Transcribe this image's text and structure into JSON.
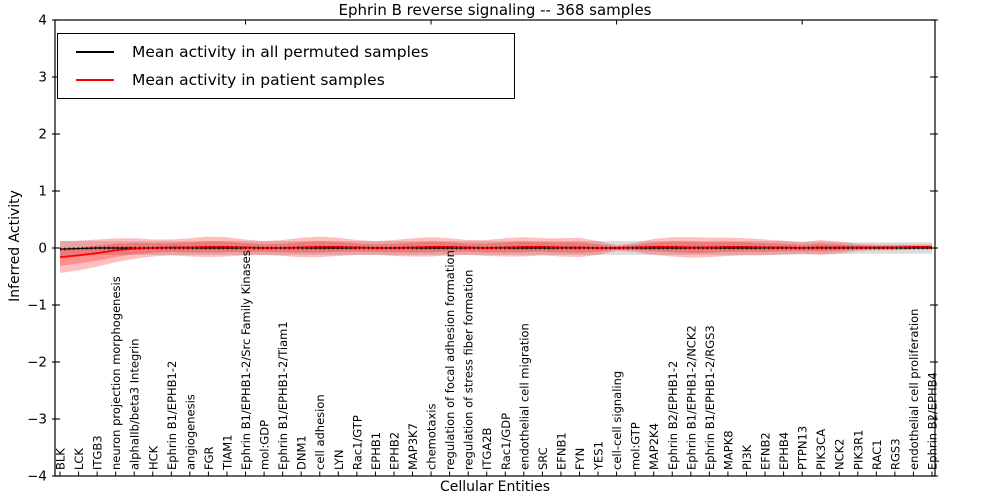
{
  "chart_data": {
    "type": "line",
    "title": "Ephrin B reverse signaling -- 368 samples",
    "xlabel": "Cellular Entities",
    "ylabel": "Inferred Activity",
    "ylim": [
      -4,
      4
    ],
    "yticks": [
      4,
      3,
      2,
      1,
      0,
      -1,
      -2,
      -3,
      -4
    ],
    "ytick_labels": [
      "4",
      "3",
      "2",
      "1",
      "0",
      "−1",
      "−2",
      "−3",
      "−4"
    ],
    "grid": false,
    "legend_position": "upper left",
    "categories": [
      "BLK",
      "LCK",
      "ITGB3",
      "neuron projection morphogenesis",
      "alphaIIb/beta3 Integrin",
      "HCK",
      "Ephrin B1/EPHB1-2",
      "angiogenesis",
      "FGR",
      "TIAM1",
      "Ephrin B1/EPHB1-2/Src Family Kinases",
      "mol:GDP",
      "Ephrin B1/EPHB1-2/Tiam1",
      "DNM1",
      "cell adhesion",
      "LYN",
      "Rac1/GTP",
      "EPHB1",
      "EPHB2",
      "MAP3K7",
      "chemotaxis",
      "regulation of focal adhesion formation",
      "regulation of stress fiber formation",
      "ITGA2B",
      "Rac1/GDP",
      "endothelial cell migration",
      "SRC",
      "EFNB1",
      "FYN",
      "YES1",
      "cell-cell signaling",
      "mol:GTP",
      "MAP2K4",
      "Ephrin B2/EPHB1-2",
      "Ephrin B1/EPHB1-2/NCK2",
      "Ephrin B1/EPHB1-2/RGS3",
      "MAPK8",
      "PI3K",
      "EFNB2",
      "EPHB4",
      "PTPN13",
      "PIK3CA",
      "NCK2",
      "PIK3R1",
      "RAC1",
      "RGS3",
      "endothelial cell proliferation",
      "Ephrin B2/EPHB4"
    ],
    "series": [
      {
        "name": "Mean activity in all permuted samples",
        "color": "#000000",
        "band_color": "rgba(130,130,130,0.28)",
        "values": [
          -0.02,
          -0.01,
          0,
          0,
          0,
          0,
          0,
          0,
          0,
          0,
          0,
          0,
          0,
          0,
          0,
          0,
          0,
          0,
          0,
          0,
          0,
          0,
          0,
          0,
          0,
          0,
          0,
          0,
          0,
          0,
          0,
          0,
          0,
          0,
          0,
          0,
          0,
          0,
          0,
          0,
          0,
          0,
          0,
          0,
          0,
          0,
          0,
          0
        ],
        "band_halfwidth": [
          0.14,
          0.13,
          0.12,
          0.12,
          0.12,
          0.12,
          0.12,
          0.12,
          0.12,
          0.12,
          0.12,
          0.12,
          0.12,
          0.12,
          0.12,
          0.12,
          0.12,
          0.12,
          0.12,
          0.12,
          0.12,
          0.12,
          0.12,
          0.12,
          0.12,
          0.12,
          0.12,
          0.12,
          0.12,
          0.12,
          0.12,
          0.12,
          0.12,
          0.12,
          0.12,
          0.12,
          0.12,
          0.12,
          0.12,
          0.12,
          0.11,
          0.11,
          0.11,
          0.1,
          0.1,
          0.1,
          0.1,
          0.1
        ]
      },
      {
        "name": "Mean activity in patient samples",
        "color": "#ff0000",
        "band_color": "rgba(255,0,0,0.25)",
        "values": [
          -0.16,
          -0.13,
          -0.09,
          -0.04,
          -0.01,
          0.0,
          0.01,
          0.01,
          0.02,
          0.02,
          0.01,
          0.0,
          0.0,
          0.01,
          0.02,
          0.02,
          0.01,
          0.0,
          0.0,
          0.01,
          0.02,
          0.02,
          0.01,
          0.0,
          0.01,
          0.02,
          0.02,
          0.01,
          0.01,
          0.0,
          0.0,
          0.01,
          0.02,
          0.02,
          0.01,
          0.01,
          0.02,
          0.02,
          0.01,
          0.01,
          0.0,
          0.01,
          0.01,
          0.01,
          0.01,
          0.01,
          0.02,
          0.02
        ],
        "band_halfwidth": [
          0.28,
          0.26,
          0.24,
          0.21,
          0.18,
          0.15,
          0.14,
          0.16,
          0.18,
          0.17,
          0.14,
          0.12,
          0.14,
          0.17,
          0.18,
          0.16,
          0.13,
          0.12,
          0.14,
          0.16,
          0.17,
          0.15,
          0.13,
          0.14,
          0.16,
          0.17,
          0.15,
          0.16,
          0.17,
          0.12,
          0.05,
          0.08,
          0.14,
          0.17,
          0.18,
          0.17,
          0.16,
          0.15,
          0.14,
          0.12,
          0.1,
          0.13,
          0.1,
          0.06,
          0.05,
          0.05,
          0.04,
          0.04
        ]
      }
    ]
  }
}
